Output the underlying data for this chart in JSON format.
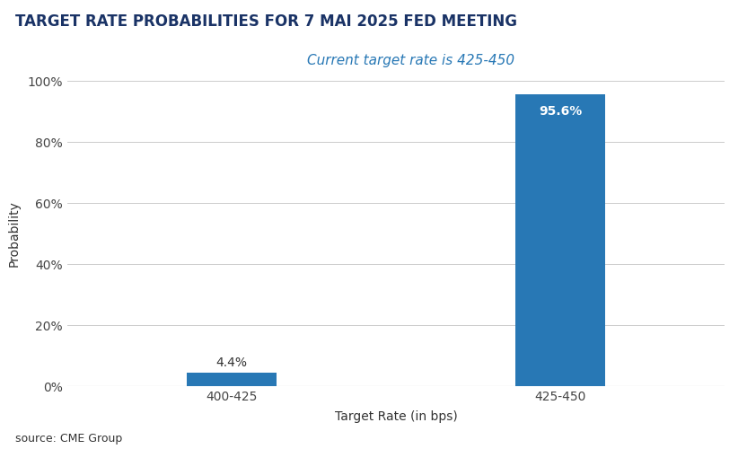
{
  "title": "TARGET RATE PROBABILITIES FOR 7 MAI 2025 FED MEETING",
  "subtitle": "Current target rate is 425-450",
  "categories": [
    "400-425",
    "425-450"
  ],
  "values": [
    4.4,
    95.6
  ],
  "bar_color": "#2878b5",
  "xlabel": "Target Rate (in bps)",
  "ylabel": "Probability",
  "source": "source: CME Group",
  "ylim": [
    0,
    100
  ],
  "yticks": [
    0,
    20,
    40,
    60,
    80,
    100
  ],
  "ytick_labels": [
    "0%",
    "20%",
    "40%",
    "60%",
    "80%",
    "100%"
  ],
  "title_color": "#1a3366",
  "subtitle_color": "#2878b5",
  "bar_label_color_above": "#333333",
  "bar_label_color_inside": "#ffffff",
  "background_color": "#ffffff",
  "grid_color": "#cccccc",
  "title_fontsize": 12,
  "subtitle_fontsize": 11,
  "label_fontsize": 10,
  "axis_label_fontsize": 10,
  "source_fontsize": 9,
  "bar_width": 0.55
}
